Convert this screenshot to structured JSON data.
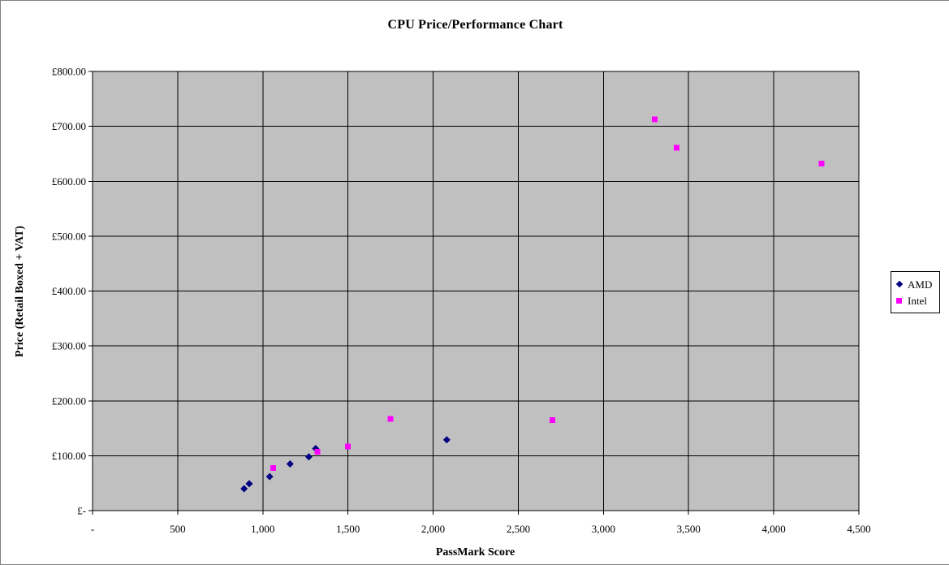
{
  "window": {
    "background": "#ffffff",
    "border_color": "#808080"
  },
  "chart_data": {
    "type": "scatter",
    "title": "CPU Price/Performance Chart",
    "xlabel": "PassMark Score",
    "ylabel": "Price (Retail Boxed + VAT)",
    "xlim": [
      0,
      4500
    ],
    "xstep": 500,
    "ylim": [
      0,
      800
    ],
    "ystep": 100,
    "grid": true,
    "plot_bg": "#c0c0c0",
    "gridline_color": "#000000",
    "legend_position": "right",
    "x_tick_labels": [
      "-",
      "500",
      "1,000",
      "1,500",
      "2,000",
      "2,500",
      "3,000",
      "3,500",
      "4,000",
      "4,500"
    ],
    "y_tick_labels": [
      "£-",
      "£100.00",
      "£200.00",
      "£300.00",
      "£400.00",
      "£500.00",
      "£600.00",
      "£700.00",
      "£800.00"
    ],
    "series": [
      {
        "name": "AMD",
        "marker": "diamond",
        "color": "#000080",
        "points": [
          [
            890,
            40
          ],
          [
            920,
            49
          ],
          [
            1040,
            62
          ],
          [
            1160,
            85
          ],
          [
            1270,
            98
          ],
          [
            1310,
            113
          ],
          [
            2080,
            129
          ]
        ]
      },
      {
        "name": "Intel",
        "marker": "square",
        "color": "#ff00ff",
        "points": [
          [
            1060,
            78
          ],
          [
            1320,
            107
          ],
          [
            1500,
            117
          ],
          [
            1750,
            167
          ],
          [
            2700,
            165
          ],
          [
            3300,
            713
          ],
          [
            3430,
            661
          ],
          [
            4280,
            632
          ]
        ]
      }
    ]
  }
}
